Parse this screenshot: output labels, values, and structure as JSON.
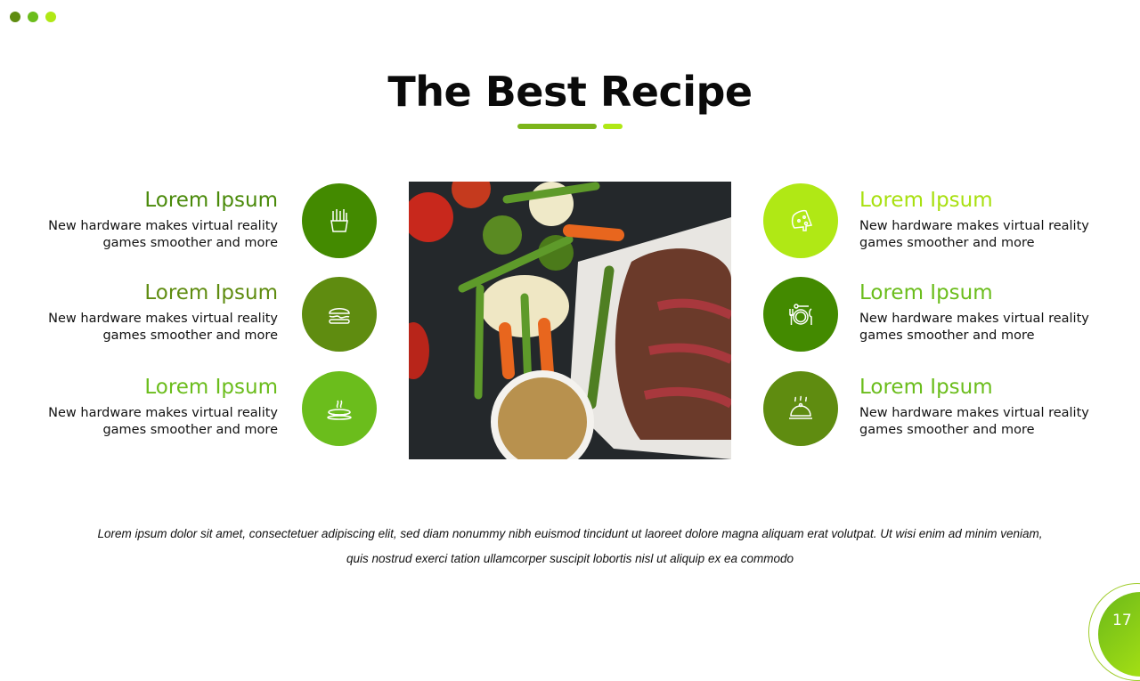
{
  "title": "The Best Recipe",
  "colors": {
    "dark_green": "#438a00",
    "olive": "#5f8c10",
    "green": "#6bbd1c",
    "lime": "#b0e815"
  },
  "left_items": [
    {
      "heading": "Lorem Ipsum",
      "text": "New hardware makes virtual reality games smoother and more",
      "icon": "fries-icon"
    },
    {
      "heading": "Lorem Ipsum",
      "text": "New hardware makes virtual reality games smoother and more",
      "icon": "burger-icon"
    },
    {
      "heading": "Lorem Ipsum",
      "text": "New hardware makes virtual reality games smoother and more",
      "icon": "soup-icon"
    }
  ],
  "right_items": [
    {
      "heading": "Lorem Ipsum",
      "text": "New hardware makes virtual reality games smoother and more",
      "icon": "cheese-icon"
    },
    {
      "heading": "Lorem Ipsum",
      "text": "New hardware makes virtual reality games smoother and more",
      "icon": "plate-cutlery-icon"
    },
    {
      "heading": "Lorem Ipsum",
      "text": "New hardware makes virtual reality games smoother and more",
      "icon": "cloche-icon"
    }
  ],
  "footer": "Lorem ipsum dolor sit amet, consectetuer adipiscing elit, sed diam nonummy nibh euismod tincidunt ut laoreet dolore magna aliquam erat volutpat. Ut wisi enim ad minim veniam, quis nostrud exerci tation ullamcorper suscipit lobortis nisl ut aliquip ex ea commodo",
  "page_number": "17"
}
